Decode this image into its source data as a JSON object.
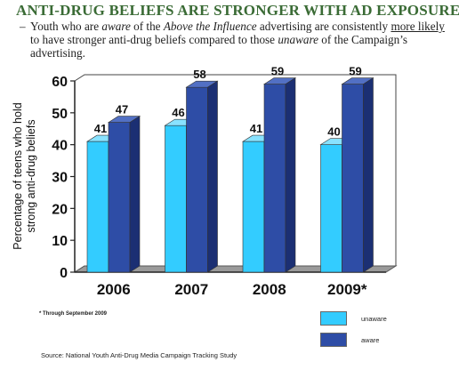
{
  "header": {
    "title": "ANTI-DRUG BELIEFS ARE STRONGER WITH AD EXPOSURE",
    "bullet_dash": "–",
    "subtitle_parts": [
      "Youth who are ",
      "aware",
      " of the ",
      "Above the Influence",
      " advertising are consistently ",
      "more likely",
      " to have stronger  anti-drug beliefs compared to those ",
      "unaware",
      " of the Campaign’s advertising."
    ]
  },
  "chart_data": {
    "type": "bar",
    "categories": [
      "2006",
      "2007",
      "2008",
      "2009*"
    ],
    "series": [
      {
        "name": "unaware",
        "values": [
          41,
          46,
          41,
          40
        ],
        "color": "#33ccff",
        "top_color": "#88e2ff",
        "side_color": "#1f9fcc"
      },
      {
        "name": "aware",
        "values": [
          47,
          58,
          59,
          59
        ],
        "color": "#2e4da6",
        "top_color": "#5270c4",
        "side_color": "#1b2f73"
      }
    ],
    "title": "",
    "xlabel": "",
    "ylabel": "Percentage of teens who hold strong anti-drug beliefs",
    "ylim": [
      0,
      60
    ],
    "yticks": [
      0,
      10,
      20,
      30,
      40,
      50,
      60
    ],
    "grid": false,
    "legend": "bottom-right",
    "data_labels": true,
    "style": "3d"
  },
  "footnote": "* Through September 2009",
  "source": "Source: National Youth Anti-Drug Media Campaign Tracking Study"
}
